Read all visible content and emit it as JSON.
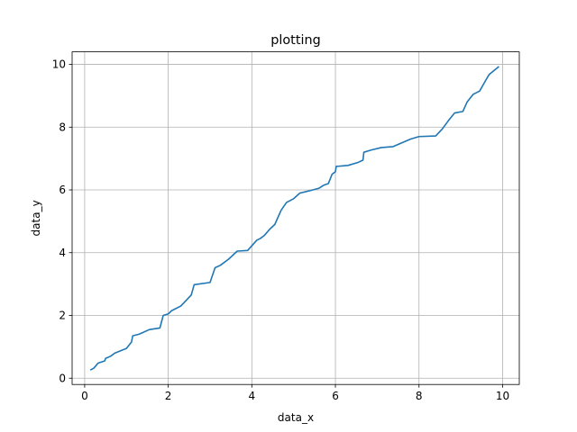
{
  "chart_data": {
    "type": "line",
    "title": "plotting",
    "xlabel": "data_x",
    "ylabel": "data_y",
    "xlim": [
      -0.3,
      10.4
    ],
    "ylim": [
      -0.2,
      10.4
    ],
    "xticks": [
      0,
      2,
      4,
      6,
      8,
      10
    ],
    "yticks": [
      0,
      2,
      4,
      6,
      8,
      10
    ],
    "grid": true,
    "color": "#1f77b4",
    "series": [
      {
        "x": [
          0.15,
          0.22,
          0.32,
          0.48,
          0.5,
          0.62,
          0.72,
          1.0,
          1.12,
          1.15,
          1.3,
          1.55,
          1.8,
          1.88,
          2.0,
          2.08,
          2.3,
          2.55,
          2.62,
          3.0,
          3.12,
          3.25,
          3.45,
          3.65,
          3.9,
          4.12,
          4.2,
          4.3,
          4.43,
          4.55,
          4.7,
          4.83,
          5.0,
          5.15,
          5.25,
          5.4,
          5.6,
          5.72,
          5.83,
          5.92,
          6.0,
          6.02,
          6.3,
          6.55,
          6.66,
          6.68,
          6.85,
          7.1,
          7.38,
          7.8,
          8.0,
          8.4,
          8.55,
          8.7,
          8.85,
          9.05,
          9.15,
          9.3,
          9.45,
          9.6,
          9.68,
          9.9
        ],
        "y": [
          0.27,
          0.32,
          0.48,
          0.55,
          0.63,
          0.7,
          0.8,
          0.95,
          1.15,
          1.35,
          1.4,
          1.55,
          1.6,
          2.0,
          2.05,
          2.15,
          2.3,
          2.65,
          2.98,
          3.05,
          3.52,
          3.6,
          3.8,
          4.05,
          4.07,
          4.4,
          4.45,
          4.55,
          4.75,
          4.9,
          5.35,
          5.6,
          5.72,
          5.9,
          5.93,
          5.98,
          6.05,
          6.15,
          6.2,
          6.5,
          6.58,
          6.75,
          6.78,
          6.88,
          6.95,
          7.2,
          7.27,
          7.35,
          7.38,
          7.62,
          7.7,
          7.72,
          7.93,
          8.2,
          8.45,
          8.5,
          8.8,
          9.05,
          9.15,
          9.5,
          9.68,
          9.92
        ]
      }
    ]
  }
}
